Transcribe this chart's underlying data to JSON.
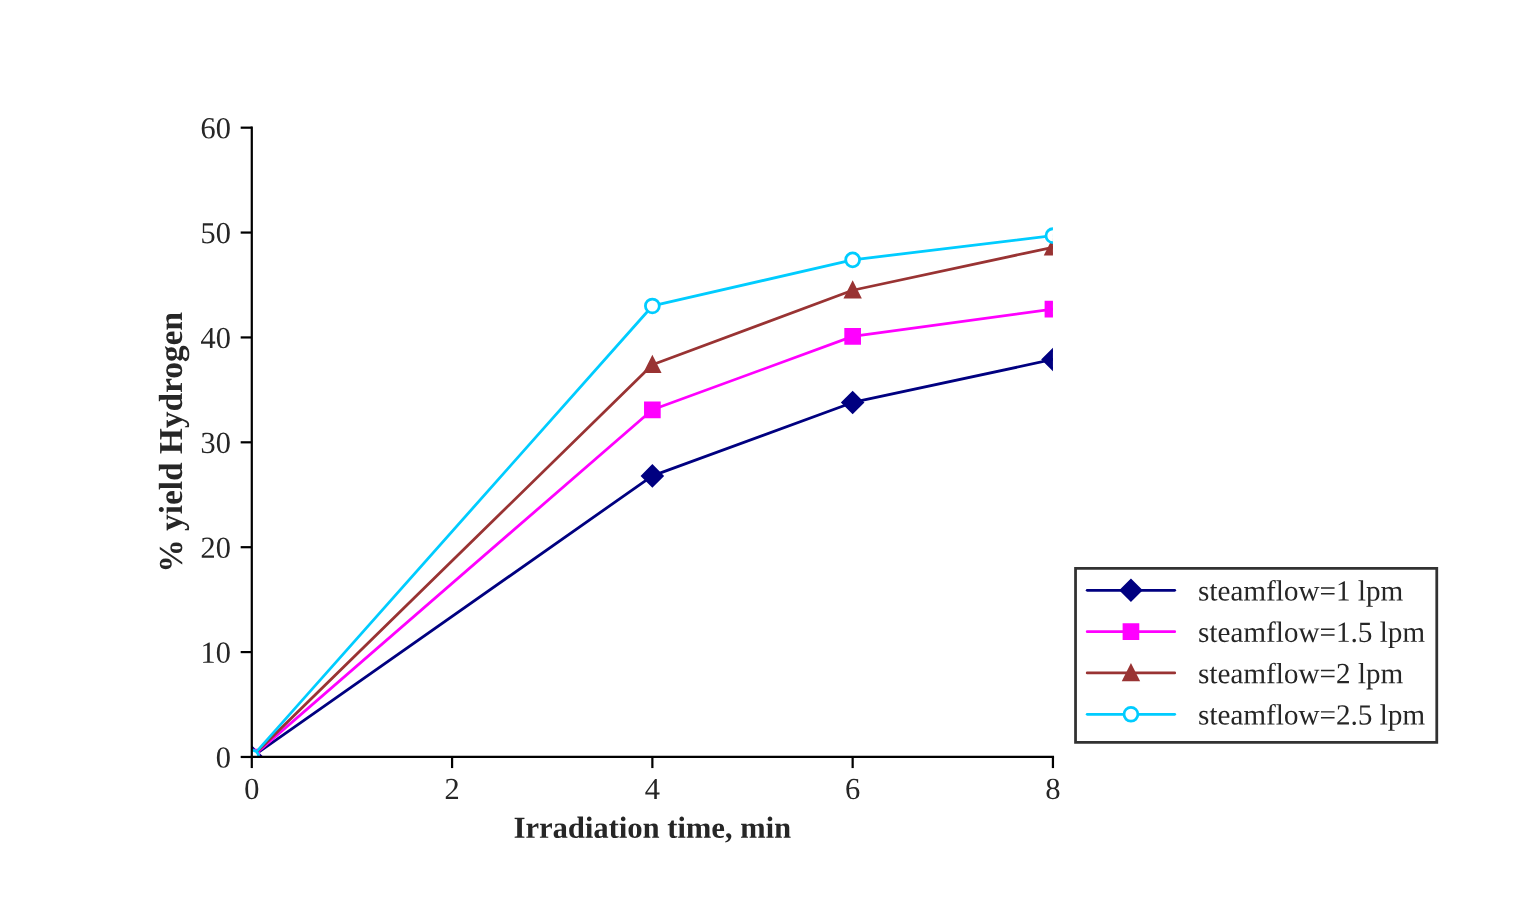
{
  "chart_data": {
    "type": "line",
    "xlabel": "Irradiation time, min",
    "ylabel": "% yield Hydrogen",
    "x": [
      0,
      4,
      6,
      8
    ],
    "xlim": [
      0,
      8
    ],
    "xticks": [
      0,
      2,
      4,
      6,
      8
    ],
    "ylim": [
      0,
      60
    ],
    "yticks": [
      0,
      10,
      20,
      30,
      40,
      50,
      60
    ],
    "grid": false,
    "legend": "bottom right",
    "line_style": "solid",
    "series": [
      {
        "name": "steamflow=1 lpm",
        "color": "#000080",
        "marker": "diamond",
        "values": [
          0,
          26.8,
          33.8,
          37.9
        ]
      },
      {
        "name": "steamflow=1.5 lpm",
        "color": "#ff00ff",
        "marker": "square",
        "values": [
          0,
          33.1,
          40.1,
          42.7
        ]
      },
      {
        "name": "steamflow=2 lpm",
        "color": "#993333",
        "marker": "triangle",
        "values": [
          0,
          37.4,
          44.5,
          48.6
        ]
      },
      {
        "name": "steamflow=2.5 lpm",
        "color": "#00ccff",
        "marker": "circle",
        "values": [
          0,
          43.0,
          47.4,
          49.7
        ]
      }
    ]
  }
}
